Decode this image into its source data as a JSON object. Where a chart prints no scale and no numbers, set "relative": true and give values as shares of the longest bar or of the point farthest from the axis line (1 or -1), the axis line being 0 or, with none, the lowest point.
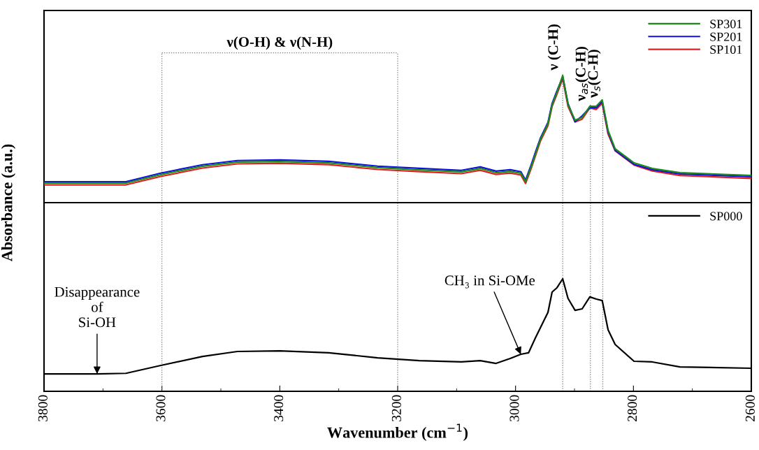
{
  "chart_data": [
    {
      "type": "line",
      "relative": true,
      "ylabel": "Absorbance (a.u.)",
      "xlim": [
        3800,
        2600
      ],
      "tick_labels": false,
      "legend": "top right",
      "x": [
        3800,
        3661,
        3602,
        3531,
        3472,
        3400,
        3317,
        3234,
        3163,
        3092,
        3060,
        3033,
        3009,
        2991,
        2983,
        2974,
        2966,
        2958,
        2945,
        2938,
        2930,
        2920,
        2911,
        2899,
        2887,
        2874,
        2863,
        2853,
        2843,
        2831,
        2799,
        2768,
        2721,
        2600
      ],
      "series": [
        {
          "name": "SP301",
          "color": "#1a8a1a",
          "values": [
            0.154,
            0.154,
            0.22,
            0.286,
            0.319,
            0.324,
            0.313,
            0.275,
            0.258,
            0.242,
            0.269,
            0.236,
            0.247,
            0.231,
            0.165,
            0.275,
            0.385,
            0.495,
            0.62,
            0.769,
            0.863,
            1.0,
            0.769,
            0.648,
            0.67,
            0.758,
            0.758,
            0.808,
            0.566,
            0.423,
            0.313,
            0.269,
            0.236,
            0.214
          ]
        },
        {
          "name": "SP201",
          "color": "#1010e0",
          "values": [
            0.164,
            0.164,
            0.232,
            0.298,
            0.331,
            0.336,
            0.325,
            0.287,
            0.27,
            0.254,
            0.281,
            0.248,
            0.259,
            0.243,
            0.177,
            0.29,
            0.4,
            0.505,
            0.63,
            0.78,
            0.875,
            0.99,
            0.78,
            0.636,
            0.682,
            0.746,
            0.746,
            0.796,
            0.554,
            0.411,
            0.301,
            0.259,
            0.226,
            0.204
          ]
        },
        {
          "name": "SP101",
          "color": "#e02020",
          "values": [
            0.14,
            0.14,
            0.206,
            0.272,
            0.305,
            0.31,
            0.299,
            0.261,
            0.244,
            0.228,
            0.255,
            0.222,
            0.233,
            0.217,
            0.151,
            0.262,
            0.372,
            0.482,
            0.606,
            0.756,
            0.85,
            0.975,
            0.756,
            0.635,
            0.657,
            0.745,
            0.733,
            0.782,
            0.54,
            0.408,
            0.296,
            0.249,
            0.214,
            0.19
          ]
        }
      ],
      "annotations": [
        "ν(O-H) & ν(N-H)"
      ],
      "ref_lines": [
        {
          "axis": "x",
          "value": 3600,
          "line_style": "dotted"
        },
        {
          "axis": "x",
          "value": 3200,
          "line_style": "dotted"
        },
        {
          "axis": "x",
          "value": 2920,
          "label": "ν (C-H)",
          "line_style": "dotted"
        },
        {
          "axis": "x",
          "value": 2873,
          "label": "ν$_{as}$(C-H)",
          "line_style": "dotted"
        },
        {
          "axis": "x",
          "value": 2852,
          "label": "ν$_{s}$(C-H)",
          "line_style": "dotted"
        }
      ]
    },
    {
      "type": "line",
      "relative": true,
      "xlabel": "Wavenumber (cm$^{−1}$)",
      "xlim": [
        3800,
        2600
      ],
      "xticks": [
        3800,
        3600,
        3400,
        3200,
        3000,
        2800,
        2600
      ],
      "tick_labels": "x",
      "legend": "top right",
      "x": [
        3800,
        3710,
        3661,
        3602,
        3531,
        3472,
        3400,
        3317,
        3234,
        3163,
        3092,
        3060,
        3033,
        3009,
        2991,
        2978,
        2966,
        2945,
        2938,
        2930,
        2920,
        2911,
        2899,
        2887,
        2874,
        2863,
        2853,
        2843,
        2831,
        2799,
        2768,
        2721,
        2600
      ],
      "series": [
        {
          "name": "SP000",
          "color": "#000000",
          "values": [
            0.155,
            0.155,
            0.16,
            0.23,
            0.31,
            0.354,
            0.36,
            0.342,
            0.298,
            0.273,
            0.261,
            0.273,
            0.248,
            0.292,
            0.329,
            0.342,
            0.478,
            0.702,
            0.882,
            0.919,
            1.0,
            0.826,
            0.72,
            0.733,
            0.839,
            0.82,
            0.807,
            0.547,
            0.416,
            0.267,
            0.261,
            0.217,
            0.205
          ]
        }
      ],
      "ref_lines": [
        {
          "axis": "x",
          "value": 3600,
          "line_style": "dotted"
        },
        {
          "axis": "x",
          "value": 3200,
          "line_style": "dotted"
        },
        {
          "axis": "x",
          "value": 2920,
          "line_style": "dotted"
        },
        {
          "axis": "x",
          "value": 2873,
          "line_style": "dotted"
        },
        {
          "axis": "x",
          "value": 2852,
          "line_style": "dotted"
        }
      ],
      "annotations": [
        {
          "text": "Disappearance\nof\nSi-OH",
          "x": 3710,
          "y": 0.155
        },
        {
          "text": "CH₃ in Si-OMe",
          "x": 2991,
          "y": 0.329
        }
      ]
    }
  ]
}
